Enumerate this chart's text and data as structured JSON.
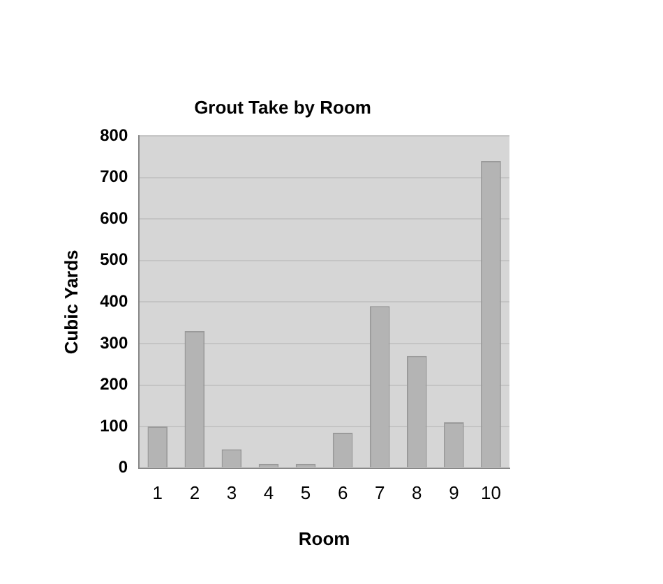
{
  "chart_data": {
    "type": "bar",
    "title": "Grout Take by Room",
    "xlabel": "Room",
    "ylabel": "Cubic Yards",
    "categories": [
      "1",
      "2",
      "3",
      "4",
      "5",
      "6",
      "7",
      "8",
      "9",
      "10"
    ],
    "values": [
      100,
      330,
      45,
      10,
      10,
      85,
      390,
      270,
      110,
      740
    ],
    "color": "#b4b4b4",
    "ylim": [
      0,
      800
    ],
    "yticks": [
      0,
      100,
      200,
      300,
      400,
      500,
      600,
      700,
      800
    ],
    "grid": "y",
    "legend": false
  }
}
